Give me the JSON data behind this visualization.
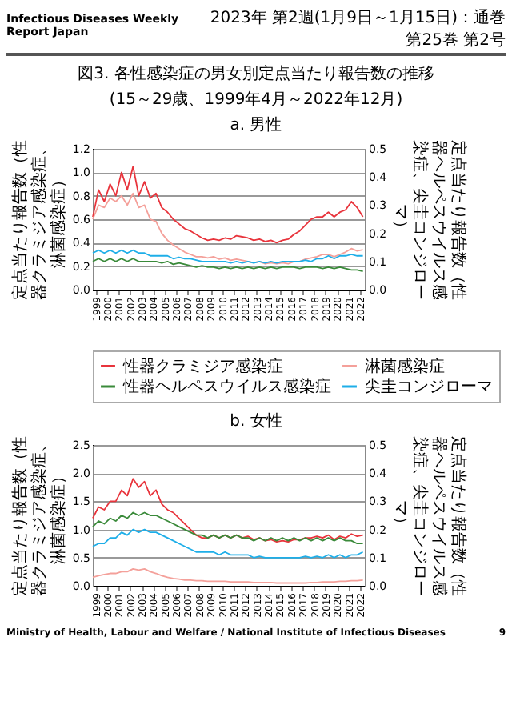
{
  "chart_data": [
    {
      "type": "line",
      "title": "図3. 各性感染症の男女別定点当たり報告数の推移",
      "subtitle": "(15～29歳、1999年4月～2022年12月)",
      "annotations": [
        "Infectious Diseases Weekly Report Japan",
        "2023年 第2週(1月9日～1月15日)：通巻第25巻 第2号",
        "a. 男性",
        "Ministry of Health, Labour and Welfare / National Institute of Infectious Diseases",
        "9"
      ],
      "ylabel": "定点当たり報告数（性器クラミジア感染症、淋菌感染症）",
      "y2label": "定点当たり報告数（性器ヘルペスウイルス感染症、尖圭コンジローマ）",
      "x": [
        "1999-04",
        "1999-10",
        "2000-04",
        "2000-10",
        "2001-04",
        "2001-10",
        "2002-04",
        "2002-10",
        "2003-04",
        "2003-10",
        "2004-04",
        "2004-10",
        "2005-04",
        "2005-10",
        "2006-04",
        "2006-10",
        "2007-04",
        "2007-10",
        "2008-04",
        "2008-10",
        "2009-04",
        "2009-10",
        "2010-04",
        "2010-10",
        "2011-04",
        "2011-10",
        "2012-04",
        "2012-10",
        "2013-04",
        "2013-10",
        "2014-04",
        "2014-10",
        "2015-04",
        "2015-10",
        "2016-04",
        "2016-10",
        "2017-04",
        "2017-10",
        "2018-04",
        "2018-10",
        "2019-04",
        "2019-10",
        "2020-04",
        "2020-10",
        "2021-04",
        "2021-10",
        "2022-04",
        "2022-10"
      ],
      "xlim": [
        "1999-04",
        "2022-12"
      ],
      "xticks": [
        {
          "value": "1999-07",
          "label": "1999"
        },
        {
          "value": "2000-07",
          "label": "2000"
        },
        {
          "value": "2001-07",
          "label": "2001"
        },
        {
          "value": "2002-07",
          "label": "2002"
        },
        {
          "value": "2003-07",
          "label": "2003"
        },
        {
          "value": "2004-07",
          "label": "2004"
        },
        {
          "value": "2005-07",
          "label": "2005"
        },
        {
          "value": "2006-07",
          "label": "2006"
        },
        {
          "value": "2007-07",
          "label": "2007"
        },
        {
          "value": "2008-07",
          "label": "2008"
        },
        {
          "value": "2009-07",
          "label": "2009"
        },
        {
          "value": "2010-07",
          "label": "2010"
        },
        {
          "value": "2011-07",
          "label": "2011"
        },
        {
          "value": "2012-07",
          "label": "2012"
        },
        {
          "value": "2013-07",
          "label": "2013"
        },
        {
          "value": "2014-07",
          "label": "2014"
        },
        {
          "value": "2015-07",
          "label": "2015"
        },
        {
          "value": "2016-07",
          "label": "2016"
        },
        {
          "value": "2017-07",
          "label": "2017"
        },
        {
          "value": "2018-07",
          "label": "2018"
        },
        {
          "value": "2019-07",
          "label": "2019"
        },
        {
          "value": "2020-07",
          "label": "2020"
        },
        {
          "value": "2021-07",
          "label": "2021"
        },
        {
          "value": "2022-07",
          "label": "2022"
        }
      ],
      "ylim": [
        0,
        1.2
      ],
      "yticks": [
        {
          "value": 0,
          "label": "0.0"
        },
        {
          "value": 0.2,
          "label": "0.2"
        },
        {
          "value": 0.4,
          "label": "0.4"
        },
        {
          "value": 0.6,
          "label": "0.6"
        },
        {
          "value": 0.8,
          "label": "0.8"
        },
        {
          "value": 1,
          "label": "1.0"
        },
        {
          "value": 1.2,
          "label": "1.2"
        }
      ],
      "y2lim": [
        0,
        0.5
      ],
      "y2ticks": [
        {
          "value": 0,
          "label": "0.0"
        },
        {
          "value": 0.1,
          "label": "0.1"
        },
        {
          "value": 0.2,
          "label": "0.2"
        },
        {
          "value": 0.3,
          "label": "0.3"
        },
        {
          "value": 0.4,
          "label": "0.4"
        },
        {
          "value": 0.5,
          "label": "0.5"
        }
      ],
      "grid": "y",
      "legend": "bottom",
      "series": [
        {
          "name": "性器クラミジア感染症",
          "color": "#e8343c",
          "values": [
            0.62,
            0.85,
            0.75,
            0.9,
            0.8,
            1.0,
            0.85,
            1.05,
            0.8,
            0.92,
            0.78,
            0.82,
            0.7,
            0.66,
            0.6,
            0.56,
            0.52,
            0.5,
            0.47,
            0.44,
            0.42,
            0.43,
            0.42,
            0.44,
            0.43,
            0.46,
            0.45,
            0.44,
            0.42,
            0.43,
            0.41,
            0.42,
            0.4,
            0.42,
            0.43,
            0.47,
            0.5,
            0.55,
            0.6,
            0.62,
            0.62,
            0.66,
            0.62,
            0.66,
            0.68,
            0.75,
            0.7,
            0.62
          ]
        },
        {
          "name": "淋菌感染症",
          "color": "#f4a09a",
          "values": [
            0.6,
            0.72,
            0.7,
            0.78,
            0.75,
            0.8,
            0.72,
            0.82,
            0.7,
            0.72,
            0.6,
            0.58,
            0.48,
            0.42,
            0.38,
            0.35,
            0.32,
            0.3,
            0.28,
            0.28,
            0.27,
            0.28,
            0.26,
            0.27,
            0.25,
            0.26,
            0.25,
            0.24,
            0.23,
            0.24,
            0.22,
            0.23,
            0.22,
            0.23,
            0.22,
            0.24,
            0.24,
            0.26,
            0.27,
            0.28,
            0.3,
            0.3,
            0.28,
            0.3,
            0.32,
            0.35,
            0.33,
            0.34
          ]
        },
        {
          "name": "性器ヘルペスウイルス感染症",
          "color": "#3a8a3a",
          "axis": "y2",
          "values": [
            0.1,
            0.11,
            0.1,
            0.11,
            0.1,
            0.11,
            0.1,
            0.11,
            0.1,
            0.1,
            0.1,
            0.1,
            0.095,
            0.1,
            0.09,
            0.095,
            0.09,
            0.085,
            0.08,
            0.085,
            0.08,
            0.08,
            0.075,
            0.08,
            0.075,
            0.08,
            0.075,
            0.08,
            0.075,
            0.08,
            0.075,
            0.08,
            0.075,
            0.08,
            0.08,
            0.08,
            0.075,
            0.08,
            0.08,
            0.08,
            0.075,
            0.08,
            0.075,
            0.08,
            0.075,
            0.07,
            0.07,
            0.065
          ]
        },
        {
          "name": "尖圭コンジローマ",
          "color": "#1eaee8",
          "axis": "y2",
          "values": [
            0.13,
            0.14,
            0.13,
            0.14,
            0.13,
            0.14,
            0.13,
            0.14,
            0.13,
            0.13,
            0.12,
            0.12,
            0.12,
            0.12,
            0.11,
            0.115,
            0.11,
            0.11,
            0.105,
            0.1,
            0.1,
            0.1,
            0.1,
            0.1,
            0.095,
            0.1,
            0.095,
            0.1,
            0.095,
            0.1,
            0.095,
            0.1,
            0.095,
            0.1,
            0.1,
            0.1,
            0.1,
            0.105,
            0.1,
            0.11,
            0.11,
            0.12,
            0.11,
            0.12,
            0.12,
            0.125,
            0.12,
            0.12
          ]
        }
      ]
    },
    {
      "type": "line",
      "title": "b. 女性",
      "ylabel": "定点当たり報告数（性器クラミジア感染症、淋菌感染症）",
      "y2label": "定点当たり報告数（性器ヘルペスウイルス感染症、尖圭コンジローマ）",
      "x": [
        "1999-04",
        "1999-10",
        "2000-04",
        "2000-10",
        "2001-04",
        "2001-10",
        "2002-04",
        "2002-10",
        "2003-04",
        "2003-10",
        "2004-04",
        "2004-10",
        "2005-04",
        "2005-10",
        "2006-04",
        "2006-10",
        "2007-04",
        "2007-10",
        "2008-04",
        "2008-10",
        "2009-04",
        "2009-10",
        "2010-04",
        "2010-10",
        "2011-04",
        "2011-10",
        "2012-04",
        "2012-10",
        "2013-04",
        "2013-10",
        "2014-04",
        "2014-10",
        "2015-04",
        "2015-10",
        "2016-04",
        "2016-10",
        "2017-04",
        "2017-10",
        "2018-04",
        "2018-10",
        "2019-04",
        "2019-10",
        "2020-04",
        "2020-10",
        "2021-04",
        "2021-10",
        "2022-04",
        "2022-10"
      ],
      "xlim": [
        "1999-04",
        "2022-12"
      ],
      "xticks": [
        {
          "value": "1999-07",
          "label": "1999"
        },
        {
          "value": "2000-07",
          "label": "2000"
        },
        {
          "value": "2001-07",
          "label": "2001"
        },
        {
          "value": "2002-07",
          "label": "2002"
        },
        {
          "value": "2003-07",
          "label": "2003"
        },
        {
          "value": "2004-07",
          "label": "2004"
        },
        {
          "value": "2005-07",
          "label": "2005"
        },
        {
          "value": "2006-07",
          "label": "2006"
        },
        {
          "value": "2007-07",
          "label": "2007"
        },
        {
          "value": "2008-07",
          "label": "2008"
        },
        {
          "value": "2009-07",
          "label": "2009"
        },
        {
          "value": "2010-07",
          "label": "2010"
        },
        {
          "value": "2011-07",
          "label": "2011"
        },
        {
          "value": "2012-07",
          "label": "2012"
        },
        {
          "value": "2013-07",
          "label": "2013"
        },
        {
          "value": "2014-07",
          "label": "2014"
        },
        {
          "value": "2015-07",
          "label": "2015"
        },
        {
          "value": "2016-07",
          "label": "2016"
        },
        {
          "value": "2017-07",
          "label": "2017"
        },
        {
          "value": "2018-07",
          "label": "2018"
        },
        {
          "value": "2019-07",
          "label": "2019"
        },
        {
          "value": "2020-07",
          "label": "2020"
        },
        {
          "value": "2021-07",
          "label": "2021"
        },
        {
          "value": "2022-07",
          "label": "2022"
        }
      ],
      "ylim": [
        0,
        2.5
      ],
      "yticks": [
        {
          "value": 0,
          "label": "0.0"
        },
        {
          "value": 0.5,
          "label": "0.5"
        },
        {
          "value": 1,
          "label": "1.0"
        },
        {
          "value": 1.5,
          "label": "1.5"
        },
        {
          "value": 2,
          "label": "2.0"
        },
        {
          "value": 2.5,
          "label": "2.5"
        }
      ],
      "y2lim": [
        0,
        0.5
      ],
      "y2ticks": [
        {
          "value": 0,
          "label": "0.0"
        },
        {
          "value": 0.1,
          "label": "0.1"
        },
        {
          "value": 0.2,
          "label": "0.2"
        },
        {
          "value": 0.3,
          "label": "0.3"
        },
        {
          "value": 0.4,
          "label": "0.4"
        },
        {
          "value": 0.5,
          "label": "0.5"
        }
      ],
      "grid": "y",
      "series": [
        {
          "color": "#e8343c",
          "values": [
            1.2,
            1.4,
            1.35,
            1.5,
            1.5,
            1.7,
            1.6,
            1.9,
            1.75,
            1.85,
            1.6,
            1.7,
            1.45,
            1.35,
            1.3,
            1.2,
            1.1,
            1.0,
            0.9,
            0.85,
            0.85,
            0.9,
            0.85,
            0.9,
            0.85,
            0.9,
            0.85,
            0.88,
            0.82,
            0.85,
            0.8,
            0.82,
            0.78,
            0.8,
            0.78,
            0.82,
            0.82,
            0.85,
            0.85,
            0.88,
            0.85,
            0.9,
            0.82,
            0.88,
            0.85,
            0.92,
            0.88,
            0.9
          ]
        },
        {
          "color": "#f4a09a",
          "values": [
            0.15,
            0.18,
            0.2,
            0.22,
            0.22,
            0.25,
            0.25,
            0.3,
            0.28,
            0.3,
            0.25,
            0.22,
            0.18,
            0.15,
            0.13,
            0.12,
            0.1,
            0.1,
            0.09,
            0.09,
            0.08,
            0.08,
            0.08,
            0.08,
            0.07,
            0.07,
            0.07,
            0.07,
            0.06,
            0.06,
            0.06,
            0.06,
            0.05,
            0.05,
            0.05,
            0.05,
            0.05,
            0.05,
            0.06,
            0.06,
            0.07,
            0.07,
            0.07,
            0.08,
            0.08,
            0.09,
            0.09,
            0.1
          ]
        },
        {
          "color": "#3a8a3a",
          "axis": "y2",
          "values": [
            0.21,
            0.23,
            0.22,
            0.24,
            0.23,
            0.25,
            0.24,
            0.26,
            0.25,
            0.26,
            0.25,
            0.25,
            0.24,
            0.23,
            0.22,
            0.21,
            0.2,
            0.19,
            0.18,
            0.18,
            0.17,
            0.18,
            0.17,
            0.18,
            0.17,
            0.18,
            0.17,
            0.17,
            0.16,
            0.17,
            0.16,
            0.17,
            0.16,
            0.17,
            0.16,
            0.17,
            0.16,
            0.17,
            0.16,
            0.17,
            0.16,
            0.17,
            0.16,
            0.17,
            0.16,
            0.16,
            0.15,
            0.15
          ]
        },
        {
          "color": "#1eaee8",
          "axis": "y2",
          "values": [
            0.14,
            0.15,
            0.15,
            0.17,
            0.17,
            0.19,
            0.18,
            0.2,
            0.19,
            0.2,
            0.19,
            0.19,
            0.18,
            0.17,
            0.16,
            0.15,
            0.14,
            0.13,
            0.12,
            0.12,
            0.12,
            0.12,
            0.11,
            0.12,
            0.11,
            0.11,
            0.11,
            0.11,
            0.1,
            0.105,
            0.1,
            0.1,
            0.1,
            0.1,
            0.1,
            0.1,
            0.1,
            0.105,
            0.1,
            0.105,
            0.1,
            0.11,
            0.1,
            0.11,
            0.1,
            0.11,
            0.11,
            0.12
          ]
        }
      ]
    }
  ]
}
